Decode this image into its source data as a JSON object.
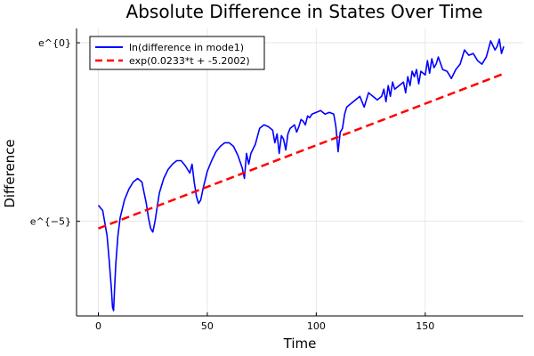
{
  "chart_data": {
    "type": "line",
    "title": "Absolute Difference in States Over Time",
    "xlabel": "Time",
    "ylabel": "Difference",
    "xlim": [
      -10,
      195
    ],
    "ylim": [
      -7.65,
      0.4
    ],
    "x_ticks": [
      {
        "value": 0,
        "label": "0"
      },
      {
        "value": 50,
        "label": "50"
      },
      {
        "value": 100,
        "label": "100"
      },
      {
        "value": 150,
        "label": "150"
      }
    ],
    "y_ticks": [
      {
        "value": -5,
        "label": "e^{−5}"
      },
      {
        "value": 0,
        "label": "e^{0}"
      }
    ],
    "grid": true,
    "legend_position": "top-left",
    "series": [
      {
        "name": "ln(difference in mode1)",
        "color": "#0000ff",
        "style": "solid",
        "x": [
          0,
          2,
          4,
          5,
          6,
          6.5,
          7,
          7.5,
          8,
          9,
          10,
          12,
          14,
          16,
          18,
          20,
          21,
          22,
          23,
          24,
          25,
          26,
          27,
          28,
          30,
          32,
          34,
          36,
          38,
          40,
          42,
          43,
          44,
          45,
          46,
          47,
          48,
          50,
          52,
          54,
          56,
          58,
          60,
          62,
          64,
          66,
          67,
          68,
          69,
          70,
          72,
          74,
          76,
          78,
          80,
          81,
          82,
          83,
          84,
          85,
          86,
          87,
          88,
          90,
          91,
          92,
          93,
          94,
          95,
          96,
          97,
          98,
          100,
          102,
          104,
          106,
          108,
          109,
          110,
          111,
          112,
          113,
          114,
          116,
          118,
          120,
          122,
          124,
          126,
          128,
          130,
          131,
          132,
          133,
          134,
          135,
          136,
          138,
          140,
          141,
          142,
          143,
          144,
          145,
          146,
          147,
          148,
          150,
          151,
          152,
          153,
          154,
          155,
          156,
          158,
          160,
          162,
          164,
          166,
          168,
          170,
          172,
          174,
          176,
          178,
          180,
          182,
          183,
          184,
          185,
          186
        ],
        "values": [
          -4.55,
          -4.7,
          -5.4,
          -6.1,
          -6.9,
          -7.4,
          -7.5,
          -6.8,
          -6.2,
          -5.4,
          -4.9,
          -4.4,
          -4.1,
          -3.9,
          -3.8,
          -3.9,
          -4.2,
          -4.5,
          -4.9,
          -5.2,
          -5.3,
          -5.0,
          -4.6,
          -4.2,
          -3.8,
          -3.55,
          -3.4,
          -3.3,
          -3.3,
          -3.45,
          -3.65,
          -3.4,
          -3.9,
          -4.3,
          -4.5,
          -4.4,
          -4.1,
          -3.6,
          -3.3,
          -3.05,
          -2.9,
          -2.8,
          -2.8,
          -2.9,
          -3.15,
          -3.5,
          -3.8,
          -3.1,
          -3.4,
          -3.1,
          -2.85,
          -2.4,
          -2.3,
          -2.35,
          -2.45,
          -2.8,
          -2.55,
          -3.1,
          -2.6,
          -2.7,
          -3.0,
          -2.55,
          -2.4,
          -2.3,
          -2.5,
          -2.35,
          -2.15,
          -2.2,
          -2.3,
          -2.05,
          -2.1,
          -2.0,
          -1.95,
          -1.9,
          -2.0,
          -1.95,
          -2.0,
          -2.35,
          -3.05,
          -2.5,
          -2.4,
          -2.0,
          -1.8,
          -1.7,
          -1.6,
          -1.5,
          -1.8,
          -1.4,
          -1.5,
          -1.6,
          -1.5,
          -1.3,
          -1.65,
          -1.2,
          -1.5,
          -1.1,
          -1.3,
          -1.2,
          -1.1,
          -1.4,
          -0.95,
          -1.2,
          -0.8,
          -0.95,
          -0.75,
          -1.15,
          -0.8,
          -0.9,
          -0.5,
          -0.85,
          -0.45,
          -0.7,
          -0.6,
          -0.4,
          -0.75,
          -0.8,
          -1.0,
          -0.75,
          -0.6,
          -0.2,
          -0.35,
          -0.3,
          -0.5,
          -0.6,
          -0.4,
          0.05,
          -0.2,
          -0.1,
          0.1,
          -0.3,
          -0.1
        ]
      },
      {
        "name": "exp(0.0233*t + -5.2002)",
        "color": "#ff0000",
        "style": "dashed",
        "x": [
          0,
          186
        ],
        "values": [
          -5.2002,
          -0.8664
        ]
      }
    ]
  }
}
